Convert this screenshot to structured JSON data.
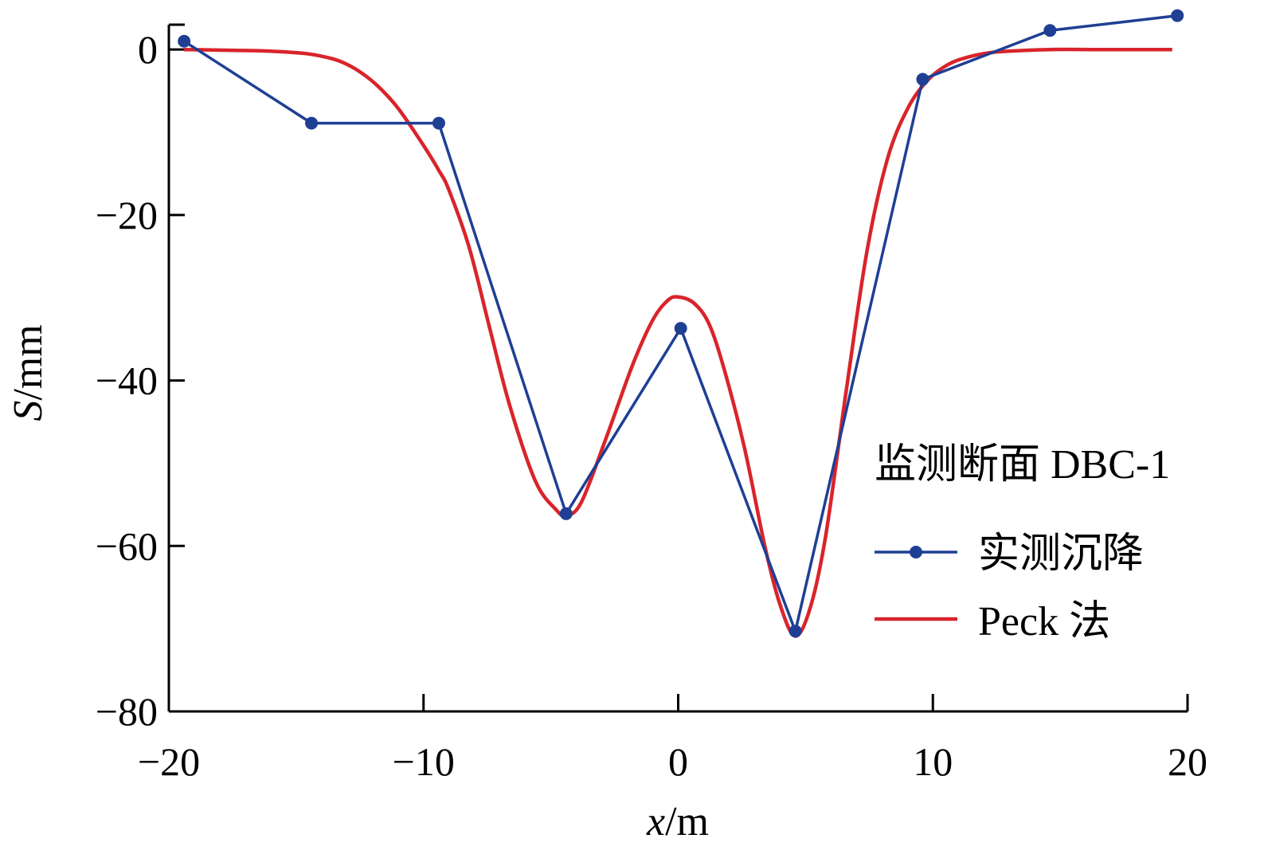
{
  "chart_data": {
    "type": "line",
    "xlabel": {
      "var": "x",
      "unit": "/m"
    },
    "ylabel": {
      "var": "S",
      "unit": "/mm"
    },
    "xlim": [
      -20,
      20
    ],
    "ylim": [
      -80,
      3
    ],
    "x_ticks": [
      -20,
      -10,
      0,
      10,
      20
    ],
    "x_tick_labels": [
      "−20",
      "−10",
      "0",
      "10",
      "20"
    ],
    "y_ticks": [
      0,
      -20,
      -40,
      -60,
      -80
    ],
    "y_tick_labels": [
      "0",
      "−20",
      "−40",
      "−60",
      "−80"
    ],
    "grid": false,
    "legend": {
      "title": "监测断面 DBC-1",
      "position": "right"
    },
    "series": [
      {
        "name": "实测沉降",
        "color": "#1f3f94",
        "style": "line-with-markers",
        "x": [
          -19.4,
          -14.4,
          -9.4,
          -4.4,
          0.1,
          4.6,
          9.6,
          14.6,
          19.6
        ],
        "y": [
          1.0,
          -8.9,
          -8.9,
          -56.1,
          -33.7,
          -70.3,
          -3.6,
          2.3,
          4.1
        ]
      },
      {
        "name": "Peck 法",
        "color": "#d9242b",
        "style": "line",
        "x": [
          -19.4,
          -17.4,
          -16.0,
          -14.6,
          -13.6,
          -13.0,
          -12.4,
          -11.8,
          -11.0,
          -10.0,
          -9.4,
          -9.0,
          -8.2,
          -7.4,
          -6.6,
          -5.6,
          -4.8,
          -4.4,
          -3.8,
          -2.8,
          -1.8,
          -1.0,
          -0.4,
          0.0,
          0.6,
          1.2,
          1.8,
          2.6,
          3.4,
          4.0,
          4.6,
          5.2,
          5.8,
          6.6,
          7.4,
          8.2,
          9.0,
          9.8,
          10.6,
          11.4,
          12.2,
          13.0,
          14.6,
          16.6,
          19.4
        ],
        "y": [
          0.0,
          -0.1,
          -0.2,
          -0.5,
          -1.1,
          -1.8,
          -2.9,
          -4.4,
          -7.1,
          -11.6,
          -14.6,
          -17.0,
          -24.0,
          -33.7,
          -43.2,
          -52.2,
          -55.6,
          -56.3,
          -54.7,
          -46.7,
          -38.2,
          -32.7,
          -30.3,
          -29.9,
          -30.6,
          -33.1,
          -38.6,
          -48.1,
          -60.0,
          -67.1,
          -70.9,
          -67.3,
          -58.6,
          -41.2,
          -24.6,
          -13.4,
          -7.2,
          -3.7,
          -1.8,
          -0.9,
          -0.4,
          -0.2,
          0.0,
          0.0,
          0.0
        ]
      }
    ]
  }
}
